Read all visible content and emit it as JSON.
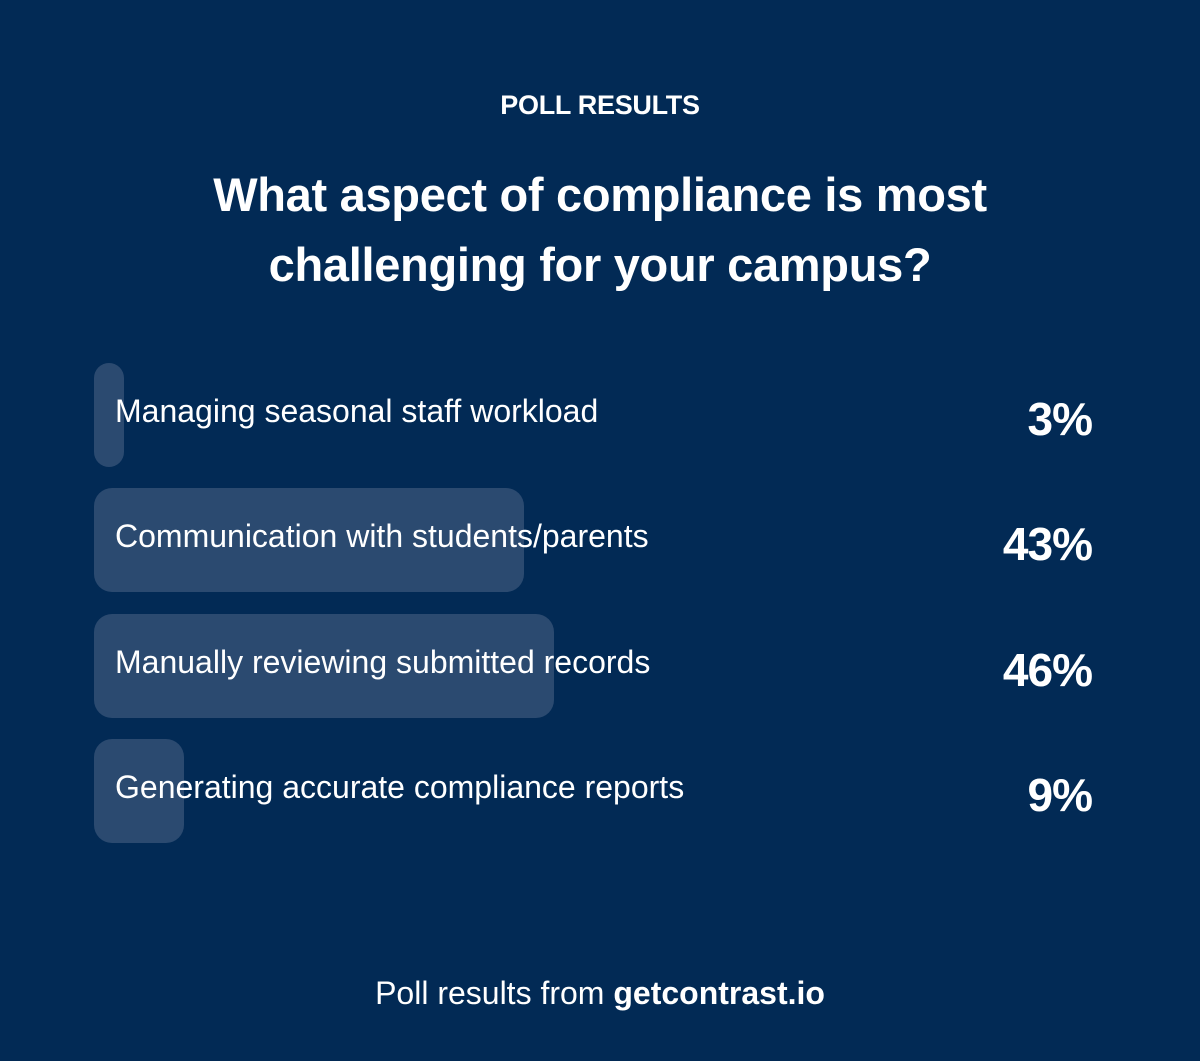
{
  "header": {
    "eyebrow": "POLL RESULTS",
    "title": "What aspect of compliance is most challenging for your campus?"
  },
  "colors": {
    "background": "#022a55",
    "bar": "#2b4a70",
    "text": "#ffffff"
  },
  "options": [
    {
      "label": "Managing seasonal staff workload",
      "percent": "3%",
      "value": 3
    },
    {
      "label": "Communication with students/parents",
      "percent": "43%",
      "value": 43
    },
    {
      "label": "Manually reviewing submitted records",
      "percent": "46%",
      "value": 46
    },
    {
      "label": "Generating accurate compliance reports",
      "percent": "9%",
      "value": 9
    }
  ],
  "footer": {
    "prefix": "Poll results from ",
    "source": "getcontrast.io"
  },
  "chart_data": {
    "type": "bar",
    "orientation": "horizontal",
    "title": "What aspect of compliance is most challenging for your campus?",
    "subtitle": "POLL RESULTS",
    "categories": [
      "Managing seasonal staff workload",
      "Communication with students/parents",
      "Manually reviewing submitted records",
      "Generating accurate compliance reports"
    ],
    "values": [
      3,
      43,
      46,
      9
    ],
    "value_labels": [
      "3%",
      "43%",
      "46%",
      "9%"
    ],
    "xlabel": "",
    "ylabel": "",
    "xlim": [
      0,
      100
    ],
    "grid": false,
    "legend": "none",
    "annotation": "Poll results from getcontrast.io"
  }
}
